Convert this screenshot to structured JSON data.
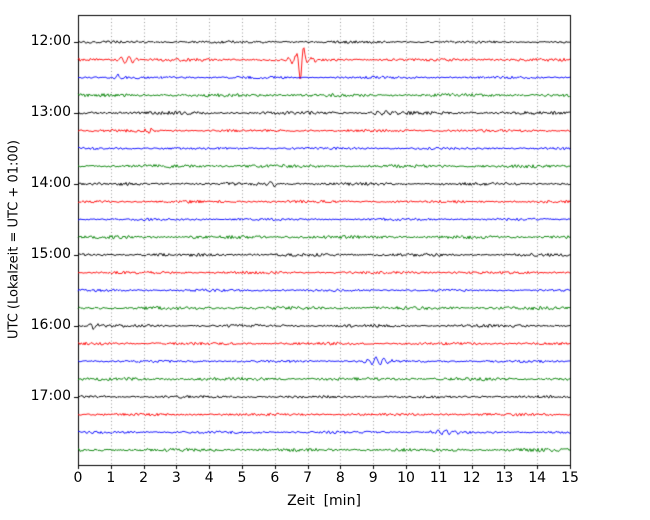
{
  "chart_data": {
    "type": "line",
    "title": "",
    "xlabel": "Zeit  [min]",
    "ylabel": "UTC (Lokalzeit = UTC + 01:00)",
    "xlim": [
      0,
      15
    ],
    "x_tick_labels": [
      "0",
      "1",
      "2",
      "3",
      "4",
      "5",
      "6",
      "7",
      "8",
      "9",
      "10",
      "11",
      "12",
      "13",
      "14",
      "15"
    ],
    "y_tick_labels": [
      "12:00",
      "13:00",
      "14:00",
      "15:00",
      "16:00",
      "17:00"
    ],
    "grid": "vertical-dotted",
    "legend": "none",
    "colors": {
      "black": "#000000",
      "red": "#ff0000",
      "blue": "#0000ff",
      "green": "#008000"
    },
    "traces": [
      {
        "time": "12:00",
        "color": "black",
        "noise": 1.0,
        "events": []
      },
      {
        "time": "12:15",
        "color": "red",
        "noise": 1.2,
        "events": [
          {
            "x": 1.5,
            "amp": 4,
            "sigma": 0.18
          },
          {
            "x": 6.8,
            "amp": 17,
            "sigma": 0.07
          },
          {
            "x": 6.8,
            "amp": 4,
            "sigma": 0.3
          }
        ]
      },
      {
        "time": "12:30",
        "color": "blue",
        "noise": 1.0,
        "events": [
          {
            "x": 1.2,
            "amp": 3.5,
            "sigma": 0.08
          }
        ]
      },
      {
        "time": "12:45",
        "color": "green",
        "noise": 1.3,
        "events": []
      },
      {
        "time": "13:00",
        "color": "black",
        "noise": 1.3,
        "events": [
          {
            "x": 9.3,
            "amp": 2,
            "sigma": 0.3
          }
        ]
      },
      {
        "time": "13:15",
        "color": "red",
        "noise": 1.1,
        "events": [
          {
            "x": 2.2,
            "amp": 2.5,
            "sigma": 0.1
          }
        ]
      },
      {
        "time": "13:30",
        "color": "blue",
        "noise": 1.0,
        "events": []
      },
      {
        "time": "13:45",
        "color": "green",
        "noise": 1.3,
        "events": []
      },
      {
        "time": "14:00",
        "color": "black",
        "noise": 1.2,
        "events": [
          {
            "x": 5.9,
            "amp": 3,
            "sigma": 0.1
          }
        ]
      },
      {
        "time": "14:15",
        "color": "red",
        "noise": 1.1,
        "events": []
      },
      {
        "time": "14:30",
        "color": "blue",
        "noise": 1.0,
        "events": []
      },
      {
        "time": "14:45",
        "color": "green",
        "noise": 1.3,
        "events": []
      },
      {
        "time": "15:00",
        "color": "black",
        "noise": 1.2,
        "events": []
      },
      {
        "time": "15:15",
        "color": "red",
        "noise": 1.1,
        "events": []
      },
      {
        "time": "15:30",
        "color": "blue",
        "noise": 1.0,
        "events": []
      },
      {
        "time": "15:45",
        "color": "green",
        "noise": 1.3,
        "events": []
      },
      {
        "time": "16:00",
        "color": "black",
        "noise": 1.2,
        "events": [
          {
            "x": 0.45,
            "amp": 3.5,
            "sigma": 0.1
          }
        ]
      },
      {
        "time": "16:15",
        "color": "red",
        "noise": 1.1,
        "events": []
      },
      {
        "time": "16:30",
        "color": "blue",
        "noise": 1.0,
        "events": [
          {
            "x": 9.1,
            "amp": 3.5,
            "sigma": 0.25
          }
        ]
      },
      {
        "time": "16:45",
        "color": "green",
        "noise": 1.3,
        "events": []
      },
      {
        "time": "17:00",
        "color": "black",
        "noise": 1.1,
        "events": []
      },
      {
        "time": "17:15",
        "color": "red",
        "noise": 1.1,
        "events": []
      },
      {
        "time": "17:30",
        "color": "blue",
        "noise": 1.0,
        "events": [
          {
            "x": 11.2,
            "amp": 2,
            "sigma": 0.3
          }
        ]
      },
      {
        "time": "17:45",
        "color": "green",
        "noise": 1.3,
        "events": []
      }
    ]
  }
}
